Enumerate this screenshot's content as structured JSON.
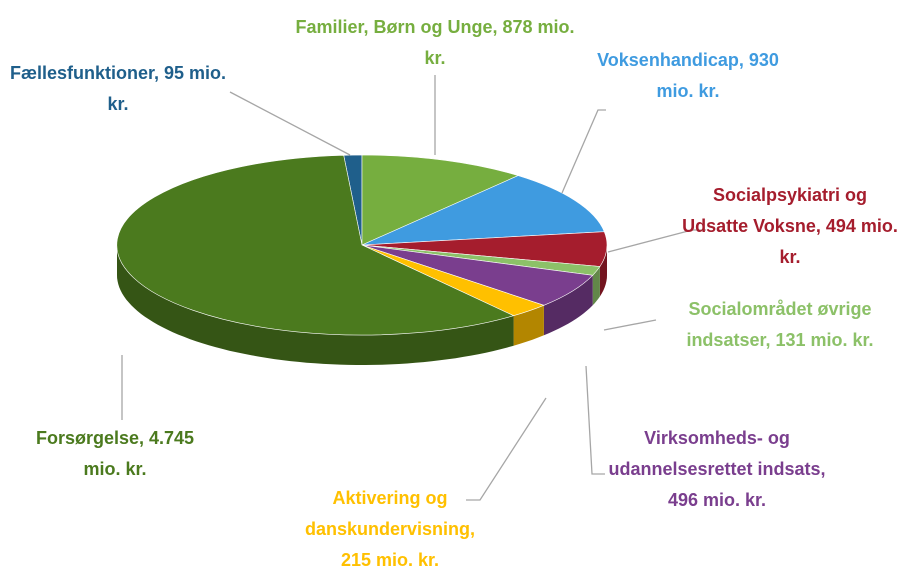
{
  "chart_data": {
    "type": "pie",
    "values": [
      95,
      878,
      930,
      494,
      131,
      496,
      215,
      4745
    ],
    "value_labels": [
      "Fællesfunktioner, 95 mio. kr.",
      "Familier, Børn og Unge, 878 mio. kr.",
      "Voksenhandicap, 930 mio. kr.",
      "Socialpsykiatri og Udsatte Voksne, 494 mio. kr.",
      "Socialområdet øvrige indsatser, 131 mio. kr.",
      "Virksomheds- og udannelsesrettet indsats, 496 mio. kr.",
      "Aktivering og danskundervisning, 215 mio. kr.",
      "Forsørgelse, 4.745 mio. kr."
    ],
    "colors": [
      "#1f5f8b",
      "#76ae3f",
      "#3f9be0",
      "#a51d2d",
      "#8cc168",
      "#7a3e8e",
      "#ffc000",
      "#4b7a1e"
    ],
    "label_colors": [
      "#1f5f8b",
      "#76ae3f",
      "#3f9be0",
      "#a51d2d",
      "#8cc168",
      "#7a3e8e",
      "#ffc000",
      "#4b7a1e"
    ]
  }
}
